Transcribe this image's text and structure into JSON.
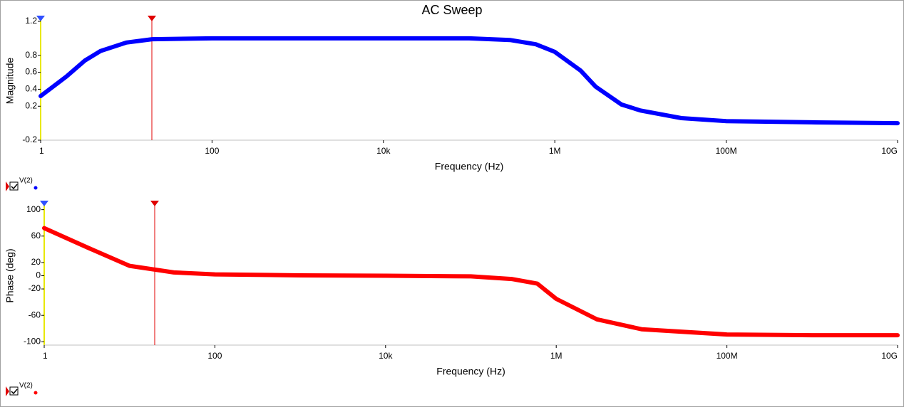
{
  "chart_data": [
    {
      "type": "line",
      "title": "AC Sweep",
      "xlabel": "Frequency (Hz)",
      "ylabel": "Magnitude",
      "xscale": "log",
      "x": [
        1,
        2,
        3.3,
        5,
        10,
        20,
        100,
        10000,
        100000,
        300000,
        600000,
        1000000,
        2000000,
        3000000,
        6000000,
        10000000,
        30000000,
        100000000,
        1000000000,
        10000000000
      ],
      "series": [
        {
          "name": "V(2)",
          "color": "#0000ff",
          "values": [
            0.32,
            0.55,
            0.74,
            0.85,
            0.95,
            0.99,
            1.0,
            1.0,
            1.0,
            0.98,
            0.93,
            0.84,
            0.62,
            0.43,
            0.22,
            0.15,
            0.06,
            0.025,
            0.01,
            0.0
          ]
        }
      ],
      "xlim": [
        1,
        10000000000
      ],
      "ylim": [
        -0.2,
        1.2
      ],
      "xticks": [
        1,
        100,
        {
          "value": 10000,
          "label": "10k"
        },
        {
          "value": 1000000,
          "label": "1M"
        },
        {
          "value": 100000000,
          "label": "100M"
        },
        {
          "value": 10000000000,
          "label": "10G"
        }
      ],
      "yticks": [
        1.2,
        0.8,
        0.6,
        0.4,
        0.2,
        -0.2
      ]
    },
    {
      "type": "line",
      "xlabel": "Frequency (Hz)",
      "ylabel": "Phase (deg)",
      "xscale": "log",
      "x": [
        1,
        3.3,
        10,
        33,
        100,
        1000,
        10000,
        100000,
        300000,
        600000,
        1000000,
        3000000,
        10000000,
        100000000,
        1000000000,
        10000000000
      ],
      "series": [
        {
          "name": "V(2)",
          "color": "#ff0000",
          "values": [
            72,
            42,
            15,
            5,
            2,
            0.5,
            0,
            -1,
            -5,
            -12,
            -35,
            -66,
            -81,
            -89,
            -90,
            -90
          ]
        }
      ],
      "xlim": [
        1,
        10000000000
      ],
      "ylim": [
        -105,
        105
      ],
      "xticks": [
        1,
        100,
        {
          "value": 10000,
          "label": "10k"
        },
        {
          "value": 1000000,
          "label": "1M"
        },
        {
          "value": 100000000,
          "label": "100M"
        },
        {
          "value": 10000000000,
          "label": "10G"
        }
      ],
      "yticks": [
        100,
        60,
        20,
        0,
        -20,
        -60,
        -100
      ]
    }
  ]
}
